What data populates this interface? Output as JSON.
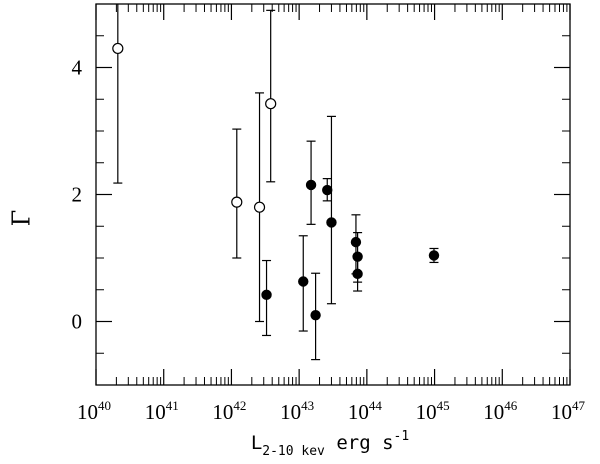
{
  "chart_data": {
    "type": "scatter",
    "xscale": "log",
    "xlim": [
      1e+40,
      1e+47
    ],
    "ylim": [
      -1,
      5
    ],
    "grid": false,
    "legend": "none",
    "ylabel": "Γ",
    "xlabel": {
      "main": "L",
      "sub": "2-10 kev",
      "unit": " erg s",
      "unit_sup": "-1"
    },
    "x_ticks": [
      {
        "value": 1e+40,
        "base": "10",
        "exp": "40"
      },
      {
        "value": 1e+41,
        "base": "10",
        "exp": "41"
      },
      {
        "value": 1e+42,
        "base": "10",
        "exp": "42"
      },
      {
        "value": 1e+43,
        "base": "10",
        "exp": "43"
      },
      {
        "value": 1e+44,
        "base": "10",
        "exp": "44"
      },
      {
        "value": 1e+45,
        "base": "10",
        "exp": "45"
      },
      {
        "value": 1e+46,
        "base": "10",
        "exp": "46"
      },
      {
        "value": 1e+47,
        "base": "10",
        "exp": "47"
      }
    ],
    "y_ticks": [
      {
        "value": 0,
        "label": "0"
      },
      {
        "value": 2,
        "label": "2"
      },
      {
        "value": 4,
        "label": "4"
      }
    ],
    "series": [
      {
        "marker": "open-circle",
        "points": [
          {
            "x": 2.1e+40,
            "y": 4.3,
            "ylo": 2.18,
            "yhi": 5.0
          },
          {
            "x": 1.2e+42,
            "y": 1.88,
            "ylo": 1.0,
            "yhi": 3.03
          },
          {
            "x": 2.6e+42,
            "y": 1.8,
            "ylo": 0.0,
            "yhi": 3.6
          },
          {
            "x": 3.8e+42,
            "y": 3.43,
            "ylo": 2.2,
            "yhi": 4.9
          }
        ]
      },
      {
        "marker": "filled-circle",
        "points": [
          {
            "x": 3.3e+42,
            "y": 0.42,
            "ylo": -0.22,
            "yhi": 0.96
          },
          {
            "x": 1.15e+43,
            "y": 0.63,
            "ylo": -0.15,
            "yhi": 1.35
          },
          {
            "x": 1.5e+43,
            "y": 2.15,
            "ylo": 1.53,
            "yhi": 2.84
          },
          {
            "x": 1.75e+43,
            "y": 0.1,
            "ylo": -0.6,
            "yhi": 0.76
          },
          {
            "x": 2.6e+43,
            "y": 2.07,
            "ylo": 1.9,
            "yhi": 2.25
          },
          {
            "x": 3e+43,
            "y": 1.56,
            "ylo": 0.28,
            "yhi": 3.23
          },
          {
            "x": 6.9e+43,
            "y": 1.25,
            "ylo": 0.75,
            "yhi": 1.68
          },
          {
            "x": 7.3e+43,
            "y": 1.02,
            "ylo": 0.62,
            "yhi": 1.4
          },
          {
            "x": 7.3e+43,
            "y": 0.75,
            "ylo": 0.48,
            "yhi": 1.02
          },
          {
            "x": 9.8e+44,
            "y": 1.04,
            "ylo": 0.93,
            "yhi": 1.15
          }
        ]
      }
    ]
  }
}
